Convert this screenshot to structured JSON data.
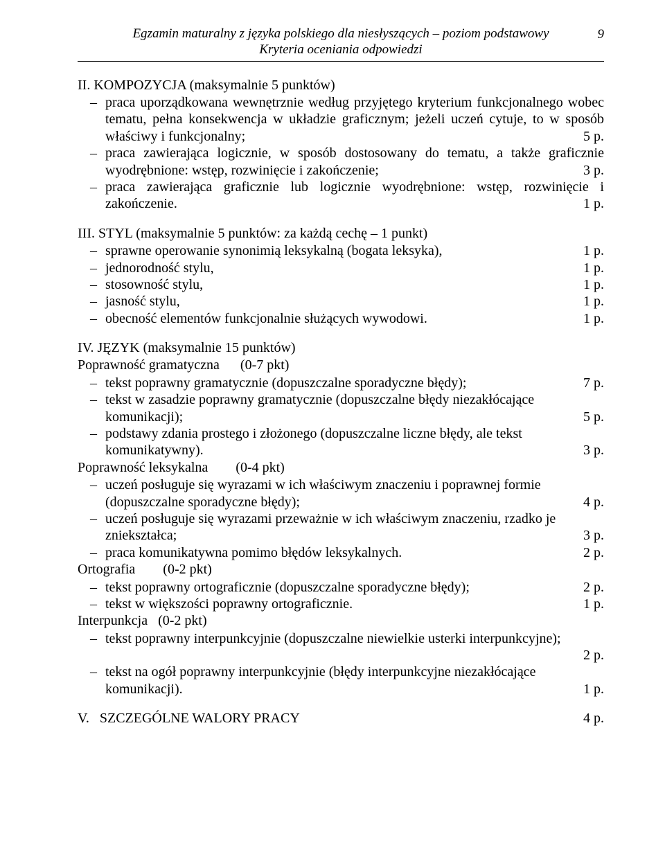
{
  "header": {
    "line1": "Egzamin maturalny z języka polskiego dla niesłyszących – poziom podstawowy",
    "line2": "Kryteria oceniania odpowiedzi",
    "page_number": "9"
  },
  "sections": {
    "II": {
      "heading": "II.  KOMPOZYCJA (maksymalnie 5 punktów)",
      "items": [
        {
          "text": "praca uporządkowana wewnętrznie według przyjętego kryterium funkcjonalnego wobec tematu, pełna konsekwencja w układzie graficznym; jeżeli uczeń cytuje, to w sposób właściwy i funkcjonalny;",
          "pts": "5 p.",
          "justify": true
        },
        {
          "text": "praca zawierająca logicznie, w sposób dostosowany do tematu, a także graficznie wyodrębnione: wstęp, rozwinięcie i zakończenie;",
          "pts": "3 p.",
          "justify": true
        },
        {
          "text": "praca zawierająca graficznie lub logicznie wyodrębnione: wstęp, rozwinięcie i zakończenie.",
          "pts": "1 p.",
          "justify": true
        }
      ]
    },
    "III": {
      "heading": "III. STYL (maksymalnie 5 punktów: za każdą cechę – 1 punkt)",
      "items": [
        {
          "text": "sprawne operowanie synonimią leksykalną (bogata leksyka),",
          "pts": "1 p."
        },
        {
          "text": "jednorodność stylu,",
          "pts": "1 p."
        },
        {
          "text": "stosowność stylu,",
          "pts": "1 p."
        },
        {
          "text": "jasność stylu,",
          "pts": "1 p."
        },
        {
          "text": "obecność elementów funkcjonalnie służących wywodowi.",
          "pts": "1 p."
        }
      ]
    },
    "IV": {
      "heading": "IV.  JĘZYK (maksymalnie 15 punktów)",
      "groups": [
        {
          "sub": "Poprawność gramatyczna      (0-7 pkt)",
          "items": [
            {
              "text": "tekst poprawny gramatycznie (dopuszczalne sporadyczne błędy);",
              "pts": "7 p."
            },
            {
              "text": "tekst w zasadzie poprawny gramatycznie (dopuszczalne błędy niezakłócające",
              "cont": "komunikacji);",
              "pts": "5 p."
            },
            {
              "text": "podstawy zdania prostego i złożonego (dopuszczalne liczne błędy, ale tekst",
              "cont": "komunikatywny).",
              "pts": "3 p."
            }
          ]
        },
        {
          "sub": "Poprawność leksykalna        (0-4 pkt)",
          "items": [
            {
              "text": "uczeń posługuje się wyrazami w ich właściwym znaczeniu i poprawnej formie",
              "cont": "(dopuszczalne sporadyczne błędy);",
              "pts": "4 p."
            },
            {
              "text": "uczeń posługuje się wyrazami przeważnie w ich właściwym znaczeniu, rzadko je",
              "cont": "zniekształca;",
              "pts": "3 p."
            },
            {
              "text": "praca komunikatywna pomimo błędów leksykalnych.",
              "pts": "2 p."
            }
          ]
        },
        {
          "sub": "Ortografia        (0-2 pkt)",
          "items": [
            {
              "text": "tekst poprawny ortograficznie (dopuszczalne sporadyczne błędy);",
              "pts": "2 p."
            },
            {
              "text": "tekst w większości poprawny ortograficznie.",
              "pts": "1 p."
            }
          ]
        },
        {
          "sub": "Interpunkcja   (0-2 pkt)",
          "items": [
            {
              "text": "tekst poprawny interpunkcyjnie (dopuszczalne niewielkie usterki interpunkcyjne);",
              "pts_below": "2 p."
            },
            {
              "text": "tekst na ogół poprawny interpunkcyjnie (błędy interpunkcyjne niezakłócające",
              "cont": "komunikacji).",
              "pts": "1 p."
            }
          ]
        }
      ]
    },
    "V": {
      "label": "V.   SZCZEGÓLNE WALORY PRACY",
      "pts": "4 p."
    }
  }
}
